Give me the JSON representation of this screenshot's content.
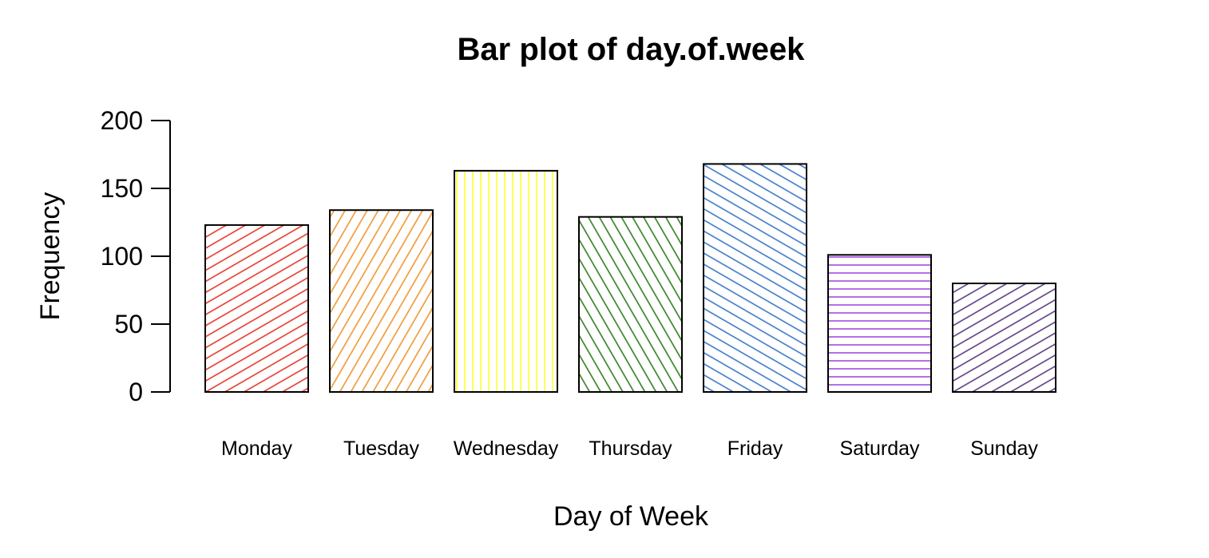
{
  "chart_data": {
    "type": "bar",
    "title": "Bar plot of day.of.week",
    "xlabel": "Day of Week",
    "ylabel": "Frequency",
    "categories": [
      "Monday",
      "Tuesday",
      "Wednesday",
      "Thursday",
      "Friday",
      "Saturday",
      "Sunday"
    ],
    "values": [
      123,
      134,
      163,
      129,
      168,
      101,
      80
    ],
    "ylim": [
      0,
      200
    ],
    "yticks": [
      "0",
      "50",
      "100",
      "150",
      "200"
    ],
    "grid": false,
    "legend": "none",
    "colors": [
      "#e6372a",
      "#f0952e",
      "#ffff2e",
      "#2e7d1e",
      "#3a78c8",
      "#9b4fe0",
      "#5b3a80"
    ],
    "hatch": [
      "diagonal-up",
      "diagonal-up-steep",
      "vertical",
      "diagonal-down-steep",
      "diagonal-down",
      "horizontal",
      "diagonal-up"
    ]
  }
}
